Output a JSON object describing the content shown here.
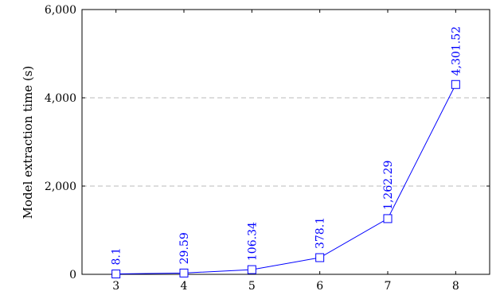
{
  "chart_data": {
    "type": "line",
    "title": "",
    "xlabel": "",
    "ylabel": "Model extraction time (s)",
    "x": [
      3,
      4,
      5,
      6,
      7,
      8
    ],
    "xticks": [
      "3",
      "4",
      "5",
      "6",
      "7",
      "8"
    ],
    "yticks": [
      0,
      2000,
      4000,
      6000
    ],
    "ytick_labels": [
      "0",
      "2,000",
      "4,000",
      "6,000"
    ],
    "ylim": [
      0,
      6000
    ],
    "xlim": [
      2.5,
      8.5
    ],
    "grid": "horizontal dashed",
    "series": [
      {
        "values": [
          8.1,
          29.59,
          106.34,
          378.1,
          1262.29,
          4301.52
        ],
        "labels": [
          "8.1",
          "29.59",
          "106.34",
          "378.1",
          "1,262.29",
          "4,301.52"
        ],
        "color": "#0000ff",
        "marker": "square"
      }
    ]
  }
}
